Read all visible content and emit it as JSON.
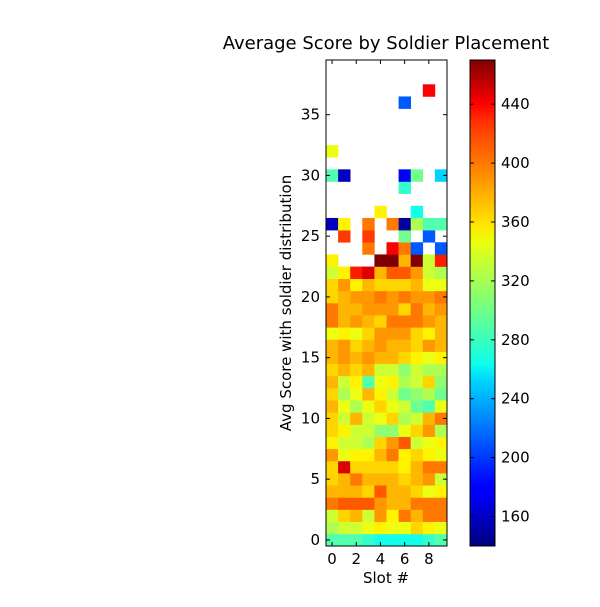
{
  "chart_data": {
    "type": "heatmap",
    "title": "Average Score by Soldier Placement",
    "xlabel": "Slot #",
    "ylabel": "Avg Score with soldier distribution",
    "x_ticks": [
      "0",
      "2",
      "4",
      "6",
      "8"
    ],
    "y_ticks": [
      "0",
      "5",
      "10",
      "15",
      "20",
      "25",
      "30",
      "35"
    ],
    "xlim": [
      -0.5,
      9.5
    ],
    "ylim": [
      -0.5,
      39.5
    ],
    "colorbar": {
      "colormap": "jet",
      "range": [
        140,
        470
      ],
      "ticks": [
        "160",
        "200",
        "240",
        "280",
        "320",
        "360",
        "400",
        "440"
      ]
    },
    "rows": [
      {
        "y": 0,
        "values": [
          290,
          290,
          290,
          280,
          270,
          270,
          270,
          270,
          280,
          290
        ]
      },
      {
        "y": 1,
        "values": [
          320,
          330,
          330,
          340,
          350,
          340,
          340,
          360,
          350,
          340
        ]
      },
      {
        "y": 2,
        "values": [
          330,
          360,
          370,
          330,
          380,
          350,
          390,
          370,
          390,
          390
        ]
      },
      {
        "y": 3,
        "values": [
          390,
          400,
          400,
          400,
          380,
          370,
          370,
          390,
          390,
          390
        ]
      },
      {
        "y": 4,
        "values": [
          370,
          370,
          370,
          360,
          400,
          370,
          370,
          360,
          340,
          350
        ]
      },
      {
        "y": 5,
        "values": [
          360,
          370,
          390,
          370,
          370,
          370,
          360,
          370,
          380,
          330
        ]
      },
      {
        "y": 6,
        "values": [
          360,
          440,
          360,
          360,
          360,
          360,
          350,
          370,
          390,
          390
        ]
      },
      {
        "y": 7,
        "values": [
          380,
          340,
          350,
          350,
          370,
          390,
          350,
          360,
          350,
          340
        ]
      },
      {
        "y": 8,
        "values": [
          350,
          330,
          330,
          320,
          360,
          380,
          400,
          330,
          340,
          350
        ]
      },
      {
        "y": 9,
        "values": [
          360,
          350,
          330,
          330,
          310,
          310,
          340,
          360,
          380,
          320
        ]
      },
      {
        "y": 10,
        "values": [
          360,
          330,
          370,
          330,
          340,
          360,
          320,
          330,
          370,
          390
        ]
      },
      {
        "y": 11,
        "values": [
          370,
          340,
          320,
          340,
          360,
          340,
          330,
          300,
          290,
          340
        ]
      },
      {
        "y": 12,
        "values": [
          360,
          320,
          340,
          370,
          350,
          330,
          300,
          310,
          320,
          300
        ]
      },
      {
        "y": 13,
        "values": [
          370,
          330,
          350,
          290,
          340,
          350,
          320,
          330,
          360,
          310
        ]
      },
      {
        "y": 14,
        "values": [
          360,
          370,
          360,
          370,
          330,
          330,
          310,
          330,
          320,
          320
        ]
      },
      {
        "y": 15,
        "values": [
          370,
          380,
          370,
          380,
          370,
          370,
          360,
          350,
          340,
          350
        ]
      },
      {
        "y": 16,
        "values": [
          370,
          380,
          360,
          370,
          380,
          370,
          370,
          360,
          380,
          370
        ]
      },
      {
        "y": 17,
        "values": [
          340,
          350,
          340,
          360,
          380,
          380,
          380,
          360,
          350,
          370
        ]
      },
      {
        "y": 18,
        "values": [
          390,
          370,
          380,
          370,
          360,
          390,
          390,
          390,
          380,
          370
        ]
      },
      {
        "y": 19,
        "values": [
          390,
          370,
          370,
          380,
          380,
          380,
          360,
          390,
          370,
          380
        ]
      },
      {
        "y": 20,
        "values": [
          360,
          370,
          380,
          380,
          390,
          380,
          390,
          380,
          380,
          390
        ]
      },
      {
        "y": 21,
        "values": [
          360,
          380,
          350,
          370,
          360,
          360,
          360,
          370,
          340,
          340
        ]
      },
      {
        "y": 22,
        "values": [
          330,
          350,
          420,
          440,
          370,
          400,
          400,
          380,
          330,
          320
        ]
      },
      {
        "y": 23,
        "values": [
          350,
          null,
          null,
          null,
          470,
          470,
          370,
          470,
          330,
          420
        ]
      },
      {
        "y": 24,
        "values": [
          null,
          null,
          null,
          390,
          null,
          430,
          390,
          210,
          null,
          210
        ]
      },
      {
        "y": 25,
        "values": [
          null,
          410,
          null,
          410,
          null,
          null,
          300,
          null,
          210,
          null
        ]
      },
      {
        "y": 26,
        "values": [
          160,
          350,
          null,
          390,
          null,
          390,
          150,
          320,
          290,
          290
        ]
      },
      {
        "y": 27,
        "values": [
          null,
          null,
          null,
          null,
          350,
          null,
          null,
          270,
          null,
          null
        ]
      },
      {
        "y": 29,
        "values": [
          null,
          null,
          null,
          null,
          null,
          null,
          280,
          null,
          null,
          null
        ]
      },
      {
        "y": 30,
        "values": [
          290,
          160,
          null,
          null,
          null,
          null,
          180,
          300,
          null,
          250
        ]
      },
      {
        "y": 32,
        "values": [
          340,
          null,
          null,
          null,
          null,
          null,
          null,
          null,
          null,
          null
        ]
      },
      {
        "y": 36,
        "values": [
          null,
          null,
          null,
          null,
          null,
          null,
          210,
          null,
          null,
          null
        ]
      },
      {
        "y": 37,
        "values": [
          null,
          null,
          null,
          null,
          null,
          null,
          null,
          null,
          430,
          null
        ]
      }
    ]
  }
}
